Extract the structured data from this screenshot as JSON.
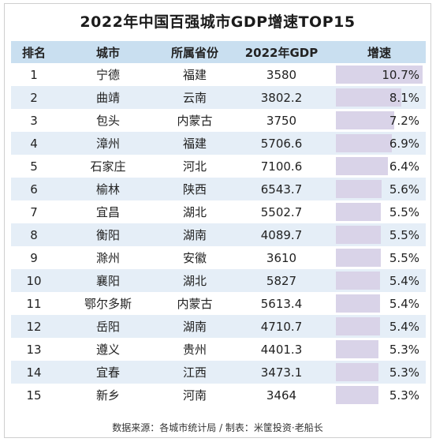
{
  "chart_data": {
    "type": "table",
    "title": "2022年中国百强城市GDP增速TOP15",
    "columns": [
      "排名",
      "城市",
      "所属省份",
      "2022年GDP",
      "增速"
    ],
    "rows": [
      {
        "rank": "1",
        "city": "宁德",
        "province": "福建",
        "gdp": "3580",
        "growth": "10.7%",
        "growth_value": 10.7
      },
      {
        "rank": "2",
        "city": "曲靖",
        "province": "云南",
        "gdp": "3802.2",
        "growth": "8.1%",
        "growth_value": 8.1
      },
      {
        "rank": "3",
        "city": "包头",
        "province": "内蒙古",
        "gdp": "3750",
        "growth": "7.2%",
        "growth_value": 7.2
      },
      {
        "rank": "4",
        "city": "漳州",
        "province": "福建",
        "gdp": "5706.6",
        "growth": "6.9%",
        "growth_value": 6.9
      },
      {
        "rank": "5",
        "city": "石家庄",
        "province": "河北",
        "gdp": "7100.6",
        "growth": "6.4%",
        "growth_value": 6.4
      },
      {
        "rank": "6",
        "city": "榆林",
        "province": "陕西",
        "gdp": "6543.7",
        "growth": "5.6%",
        "growth_value": 5.6
      },
      {
        "rank": "7",
        "city": "宜昌",
        "province": "湖北",
        "gdp": "5502.7",
        "growth": "5.5%",
        "growth_value": 5.5
      },
      {
        "rank": "8",
        "city": "衡阳",
        "province": "湖南",
        "gdp": "4089.7",
        "growth": "5.5%",
        "growth_value": 5.5
      },
      {
        "rank": "9",
        "city": "滁州",
        "province": "安徽",
        "gdp": "3610",
        "growth": "5.5%",
        "growth_value": 5.5
      },
      {
        "rank": "10",
        "city": "襄阳",
        "province": "湖北",
        "gdp": "5827",
        "growth": "5.4%",
        "growth_value": 5.4
      },
      {
        "rank": "11",
        "city": "鄂尔多斯",
        "province": "内蒙古",
        "gdp": "5613.4",
        "growth": "5.4%",
        "growth_value": 5.4
      },
      {
        "rank": "12",
        "city": "岳阳",
        "province": "湖南",
        "gdp": "4710.7",
        "growth": "5.4%",
        "growth_value": 5.4
      },
      {
        "rank": "13",
        "city": "遵义",
        "province": "贵州",
        "gdp": "4401.3",
        "growth": "5.3%",
        "growth_value": 5.3
      },
      {
        "rank": "14",
        "city": "宜春",
        "province": "江西",
        "gdp": "3473.1",
        "growth": "5.3%",
        "growth_value": 5.3
      },
      {
        "rank": "15",
        "city": "新乡",
        "province": "河南",
        "gdp": "3464",
        "growth": "5.3%",
        "growth_value": 5.3
      }
    ],
    "growth_bar_max": 10.7,
    "bar_color": "#d9d3e8",
    "header_color": "#c9dff0",
    "stripe_color": "#e5eef7"
  },
  "footer": "数据来源：各城市统计局 / 制表：米筐投资·老船长"
}
